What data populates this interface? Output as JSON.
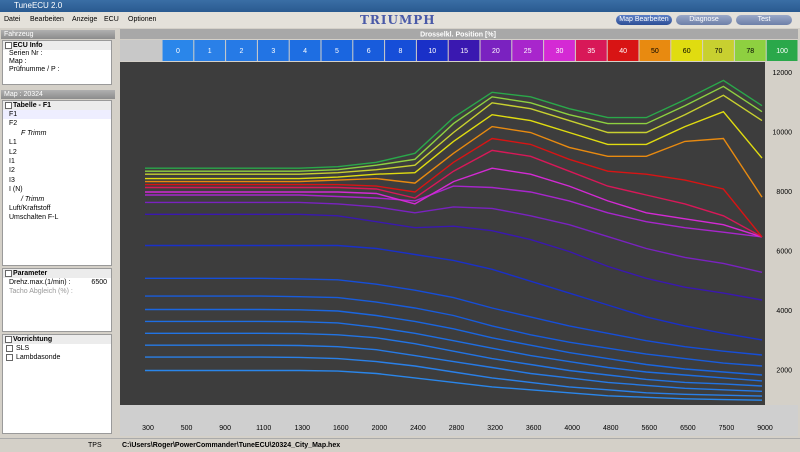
{
  "window": {
    "title": "TuneECU 2.0"
  },
  "menu": [
    "Datei",
    "Bearbeiten",
    "Anzeige",
    "ECU",
    "Optionen"
  ],
  "logo": "TRIUMPH",
  "tabs": [
    "Map Bearbeiten",
    "Diagnose",
    "Test"
  ],
  "sidebar": {
    "vehicle_header": "Fahrzeug",
    "ecu_info": {
      "title": "ECU Info",
      "fields": [
        "Serien Nr :",
        "Map :",
        "Prüfnumme / P :"
      ]
    },
    "map_header": "Map : 20324",
    "table": {
      "title": "Tabelle - F1",
      "items": [
        {
          "label": "F1",
          "level": 0
        },
        {
          "label": "F2",
          "level": 0
        },
        {
          "label": "F Trimm",
          "level": 1
        },
        {
          "label": "L1",
          "level": 0
        },
        {
          "label": "L2",
          "level": 0
        },
        {
          "label": "I1",
          "level": 0
        },
        {
          "label": "I2",
          "level": 0
        },
        {
          "label": "I3",
          "level": 0
        },
        {
          "label": "I (N)",
          "level": 0
        },
        {
          "label": "/ Trimm",
          "level": 1
        },
        {
          "label": "Luft/Kraftstoff",
          "level": 0
        },
        {
          "label": "Umschalten F-L",
          "level": 0
        }
      ]
    },
    "parameter": {
      "title": "Parameter",
      "rows": [
        {
          "label": "Drehz.max.(1/min) :",
          "value": "6500"
        },
        {
          "label": "Tacho Abgleich (%) :"
        }
      ]
    },
    "device": {
      "title": "Vorrichtung",
      "items": [
        "SLS",
        "Lambdasonde"
      ]
    }
  },
  "status": {
    "tps": "TPS",
    "path": "C:\\Users\\Roger\\PowerCommander\\TuneECU\\20324_City_Map.hex"
  },
  "chart_data": {
    "type": "line",
    "title": "Drosselkl. Position [%]",
    "categories": [
      "300",
      "500",
      "900",
      "1100",
      "1300",
      "1600",
      "2000",
      "2400",
      "2800",
      "3200",
      "3600",
      "4000",
      "4800",
      "5600",
      "6500",
      "7500",
      "9000"
    ],
    "ylim": [
      840,
      12370
    ],
    "yticks": [
      2000,
      4000,
      6000,
      8000,
      10000,
      12000
    ],
    "legend": "top",
    "series": [
      {
        "name": "0",
        "color": "#2a86ea",
        "values": [
          2000,
          2000,
          2000,
          2000,
          2000,
          1980,
          1900,
          1750,
          1600,
          1450,
          1350,
          1250,
          1150,
          1100,
          1050,
          1020,
          1000
        ]
      },
      {
        "name": "1",
        "color": "#2a80e8",
        "values": [
          2450,
          2450,
          2450,
          2450,
          2440,
          2400,
          2300,
          2150,
          1950,
          1750,
          1600,
          1450,
          1350,
          1250,
          1200,
          1170,
          1140
        ]
      },
      {
        "name": "2",
        "color": "#267ae6",
        "values": [
          2850,
          2850,
          2850,
          2850,
          2840,
          2800,
          2700,
          2500,
          2300,
          2100,
          1900,
          1750,
          1600,
          1500,
          1400,
          1350,
          1300
        ]
      },
      {
        "name": "3",
        "color": "#2274e4",
        "values": [
          3250,
          3250,
          3250,
          3250,
          3240,
          3200,
          3100,
          2900,
          2650,
          2400,
          2200,
          2000,
          1850,
          1700,
          1600,
          1550,
          1480
        ]
      },
      {
        "name": "4",
        "color": "#1e6ee2",
        "values": [
          3650,
          3650,
          3650,
          3650,
          3640,
          3600,
          3450,
          3250,
          3000,
          2750,
          2500,
          2300,
          2100,
          1950,
          1850,
          1750,
          1650
        ]
      },
      {
        "name": "5",
        "color": "#1a66e0",
        "values": [
          4050,
          4050,
          4050,
          4050,
          4040,
          4000,
          3850,
          3650,
          3400,
          3100,
          2850,
          2600,
          2400,
          2200,
          2050,
          1950,
          1850
        ]
      },
      {
        "name": "6",
        "color": "#185cdc",
        "values": [
          4500,
          4500,
          4500,
          4500,
          4480,
          4450,
          4300,
          4100,
          3850,
          3500,
          3200,
          2950,
          2750,
          2550,
          2400,
          2250,
          2150
        ]
      },
      {
        "name": "8",
        "color": "#164ed8",
        "values": [
          5100,
          5100,
          5100,
          5100,
          5080,
          5050,
          4900,
          4700,
          4450,
          4100,
          3800,
          3500,
          3250,
          3000,
          2800,
          2650,
          2520
        ]
      },
      {
        "name": "10",
        "color": "#1a30c8",
        "values": [
          6200,
          6200,
          6200,
          6200,
          6200,
          6200,
          6100,
          5900,
          5700,
          5400,
          5000,
          4600,
          4200,
          3800,
          3500,
          3250,
          3030
        ]
      },
      {
        "name": "15",
        "color": "#3a18b0",
        "values": [
          7250,
          7250,
          7250,
          7250,
          7250,
          7200,
          7000,
          6800,
          6850,
          6700,
          6400,
          6000,
          5500,
          5100,
          4800,
          4600,
          4370
        ]
      },
      {
        "name": "20",
        "color": "#7a22c0",
        "values": [
          7650,
          7650,
          7650,
          7650,
          7650,
          7600,
          7500,
          7300,
          7500,
          7450,
          7200,
          6900,
          6500,
          6100,
          5800,
          5600,
          5300
        ]
      },
      {
        "name": "25",
        "color": "#a826cc",
        "values": [
          7900,
          7900,
          7900,
          7900,
          7900,
          7850,
          7800,
          7700,
          8200,
          8150,
          8000,
          7700,
          7300,
          7000,
          6800,
          6650,
          6490
        ]
      },
      {
        "name": "30",
        "color": "#d42ad4",
        "values": [
          8000,
          8000,
          8000,
          8000,
          8000,
          8000,
          7950,
          7600,
          8350,
          8800,
          8600,
          8200,
          7700,
          7300,
          7100,
          6900,
          6490
        ]
      },
      {
        "name": "35",
        "color": "#d81858",
        "values": [
          8150,
          8150,
          8150,
          8150,
          8150,
          8150,
          8100,
          7800,
          8700,
          9400,
          9200,
          8700,
          8200,
          7900,
          7600,
          7200,
          6490
        ]
      },
      {
        "name": "40",
        "color": "#d81414",
        "values": [
          8250,
          8250,
          8250,
          8250,
          8250,
          8250,
          8200,
          8000,
          9000,
          9800,
          9600,
          9100,
          8700,
          8600,
          8400,
          8100,
          6490
        ]
      },
      {
        "name": "50",
        "color": "#e88a10",
        "values": [
          8350,
          8350,
          8350,
          8350,
          8350,
          8400,
          8450,
          8300,
          9300,
          10200,
          10000,
          9500,
          9200,
          9200,
          9700,
          9800,
          7830
        ]
      },
      {
        "name": "60",
        "color": "#e0dc10",
        "values": [
          8450,
          8450,
          8450,
          8450,
          8450,
          8500,
          8600,
          8650,
          9700,
          10600,
          10400,
          10000,
          9600,
          9600,
          10200,
          10700,
          9140
        ]
      },
      {
        "name": "70",
        "color": "#c8d030",
        "values": [
          8600,
          8600,
          8600,
          8600,
          8600,
          8650,
          8750,
          8900,
          10000,
          11000,
          10800,
          10400,
          10000,
          10000,
          10600,
          11250,
          10400
        ]
      },
      {
        "name": "78",
        "color": "#8ed040",
        "values": [
          8700,
          8700,
          8700,
          8700,
          8700,
          8750,
          8900,
          9100,
          10300,
          11200,
          11000,
          10600,
          10300,
          10300,
          10900,
          11550,
          10700
        ]
      },
      {
        "name": "100",
        "color": "#2aa84a",
        "values": [
          8800,
          8800,
          8800,
          8800,
          8800,
          8850,
          9000,
          9300,
          10500,
          11350,
          11200,
          10800,
          10500,
          10500,
          11100,
          11750,
          10900
        ]
      }
    ]
  }
}
